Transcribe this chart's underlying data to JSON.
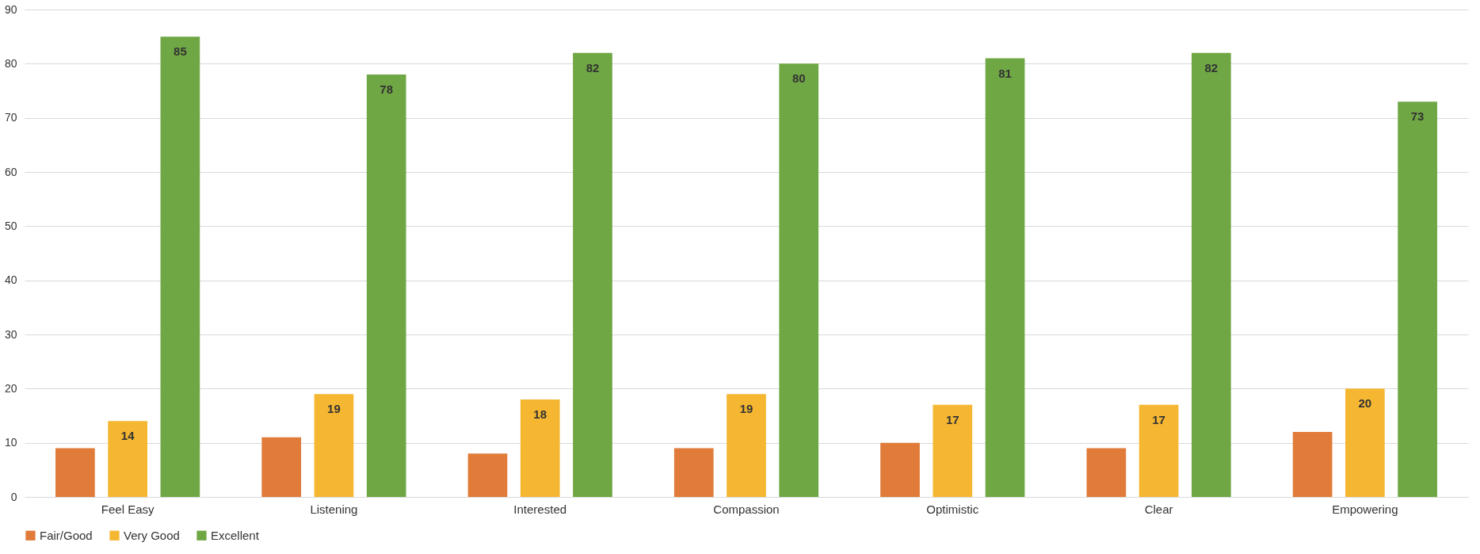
{
  "chart_data": {
    "type": "bar",
    "categories": [
      "Feel Easy",
      "Listening",
      "Interested",
      "Compassion",
      "Optimistic",
      "Clear",
      "Empowering"
    ],
    "series": [
      {
        "name": "Fair/Good",
        "color": "#e07b39",
        "values": [
          9,
          11,
          8,
          9,
          10,
          9,
          12
        ]
      },
      {
        "name": "Very Good",
        "color": "#f5b731",
        "values": [
          14,
          19,
          18,
          19,
          17,
          17,
          20
        ],
        "value_labels": [
          "14",
          "19",
          "18",
          "19",
          "17",
          "17",
          "20"
        ]
      },
      {
        "name": "Excellent",
        "color": "#70a745",
        "values": [
          85,
          78,
          82,
          80,
          81,
          82,
          73
        ],
        "value_labels": [
          "85",
          "78",
          "82",
          "80",
          "81",
          "82",
          "73"
        ]
      }
    ],
    "ylim": [
      0,
      90
    ],
    "yticks": [
      0,
      10,
      20,
      30,
      40,
      50,
      60,
      70,
      80,
      90
    ],
    "grid": "y",
    "legend": "bottom"
  }
}
